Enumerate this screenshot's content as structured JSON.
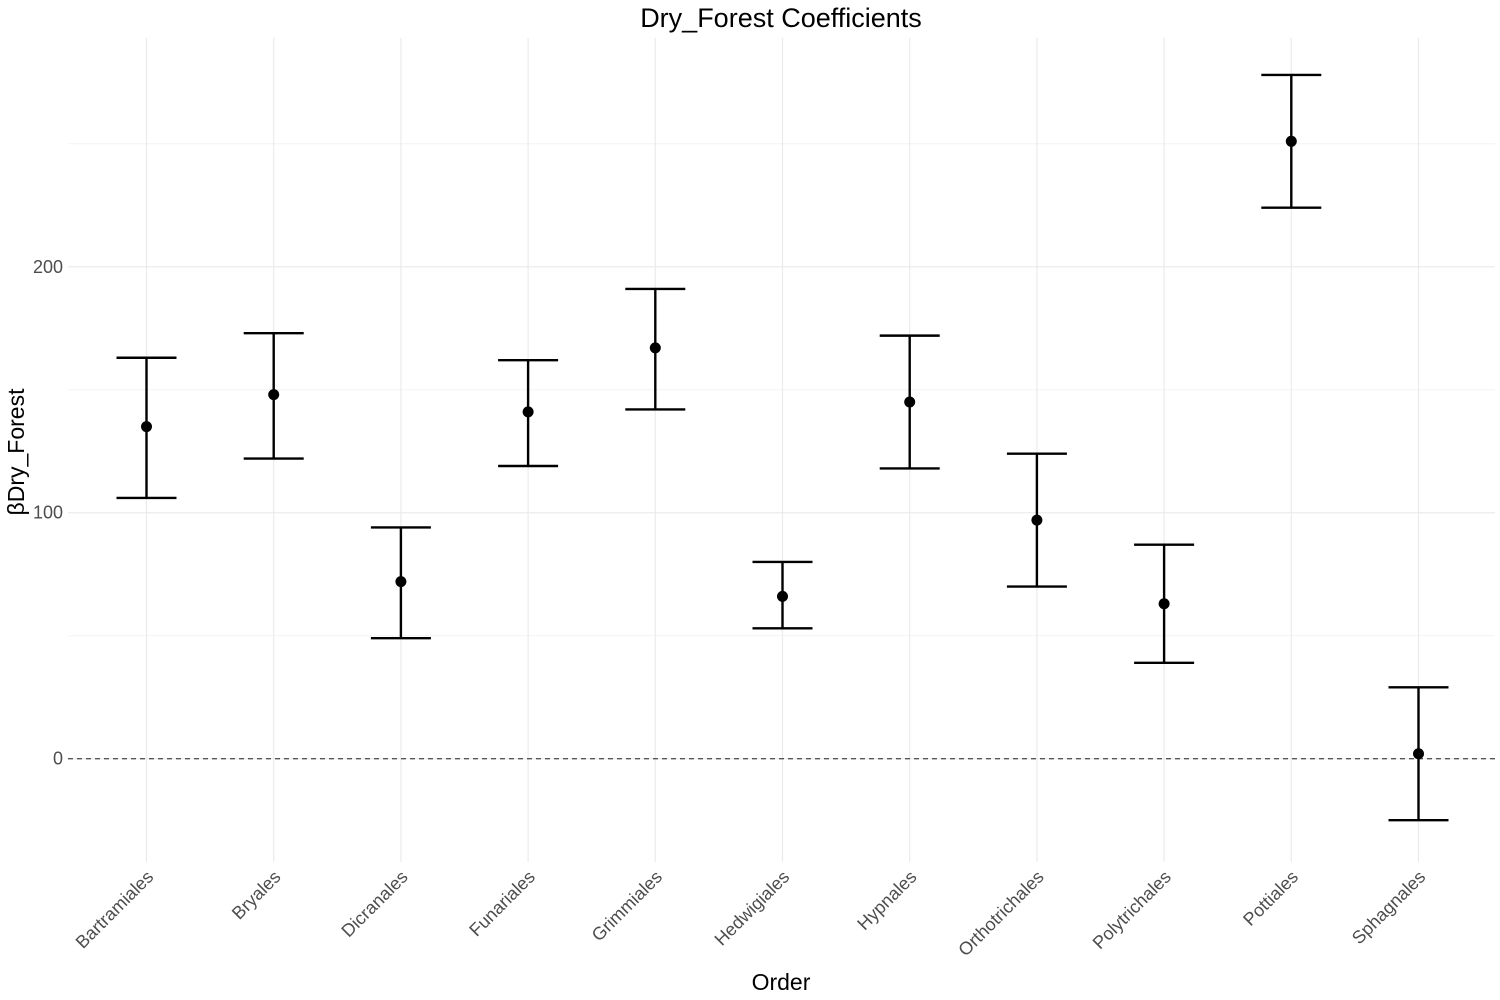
{
  "chart_data": {
    "type": "errorbar",
    "title": "Dry_Forest Coefficients",
    "xlabel": "Order",
    "ylabel": "βDry_Forest",
    "categories": [
      "Bartramiales",
      "Bryales",
      "Dicranales",
      "Funariales",
      "Grimmiales",
      "Hedwigiales",
      "Hypnales",
      "Orthotrichales",
      "Polytrichales",
      "Pottiales",
      "Sphagnales"
    ],
    "estimate": [
      135,
      148,
      72,
      141,
      167,
      66,
      145,
      97,
      63,
      251,
      2
    ],
    "lower": [
      106,
      122,
      49,
      119,
      142,
      53,
      118,
      70,
      39,
      224,
      -25
    ],
    "upper": [
      163,
      173,
      94,
      162,
      191,
      80,
      172,
      124,
      87,
      278,
      29
    ],
    "ylim": [
      -42,
      293
    ],
    "yticks": [
      0,
      100,
      200
    ],
    "reference_line": 0,
    "grid": true,
    "legend": "none"
  }
}
